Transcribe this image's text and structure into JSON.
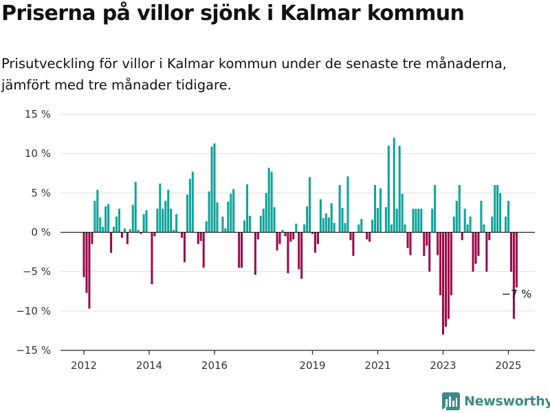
{
  "header": {
    "title": "Priserna på villor sjönk i Kalmar kommun",
    "subtitle": "Prisutveckling för villor i Kalmar kommun under de senaste tre månaderna, jämfört med tre månader tidigare."
  },
  "brand": {
    "name": "Newsworthy",
    "icon": "newsworthy-logo-icon",
    "color": "#3c8a86"
  },
  "colors": {
    "positive": "#0fa39a",
    "negative": "#9b0a4a",
    "grid": "#dddddd",
    "axis": "#222222"
  },
  "chart_data": {
    "type": "bar",
    "title": "Priserna på villor sjönk i Kalmar kommun",
    "subtitle": "Prisutveckling för villor i Kalmar kommun under de senaste tre månaderna, jämfört med tre månader tidigare.",
    "ylim": [
      -15,
      15
    ],
    "yticks": [
      15,
      10,
      5,
      0,
      -5,
      -10,
      -15
    ],
    "ytick_labels": [
      "15 %",
      "10 %",
      "5 %",
      "0 %",
      "−5 %",
      "−10 %",
      "−15 %"
    ],
    "xtick_labels": [
      {
        "label": "2012",
        "x": 2012.0
      },
      {
        "label": "2014",
        "x": 2014.0
      },
      {
        "label": "2016",
        "x": 2016.0
      },
      {
        "label": "2019",
        "x": 2019.0
      },
      {
        "label": "2021",
        "x": 2021.0
      },
      {
        "label": "2023",
        "x": 2023.0
      },
      {
        "label": "2025",
        "x": 2025.0
      }
    ],
    "grid": true,
    "legend": "none",
    "x_start": "2012-01",
    "x_step": "month",
    "values": [
      -5.7,
      -7.7,
      -9.7,
      -1.5,
      4.0,
      5.4,
      1.9,
      0.7,
      3.3,
      3.6,
      -2.6,
      0.7,
      2.0,
      3.0,
      -0.7,
      0.5,
      -1.5,
      0.4,
      3.5,
      6.4,
      0.3,
      -0.2,
      2.3,
      2.8,
      0.0,
      -6.6,
      -0.5,
      3.0,
      6.2,
      3.0,
      4.0,
      5.4,
      3.0,
      0.3,
      2.3,
      0.0,
      -0.7,
      -3.8,
      4.8,
      6.8,
      7.7,
      0.0,
      -1.5,
      -1.1,
      -4.5,
      1.4,
      5.2,
      10.9,
      11.3,
      3.8,
      0.0,
      2.0,
      0.5,
      3.9,
      4.9,
      5.5,
      0.0,
      -4.5,
      -4.5,
      1.5,
      6.1,
      2.1,
      0.0,
      -5.4,
      -0.9,
      2.1,
      3.0,
      5.0,
      8.2,
      7.7,
      3.2,
      -2.3,
      -1.5,
      0.3,
      -0.5,
      -5.2,
      -1.2,
      -0.9,
      1.1,
      -4.7,
      -5.9,
      1.0,
      3.3,
      7.0,
      -0.2,
      -2.6,
      -1.5,
      4.2,
      1.8,
      2.4,
      1.9,
      3.7,
      1.2,
      0.0,
      6.0,
      3.1,
      1.2,
      7.1,
      -1.0,
      -3.0,
      0.0,
      1.0,
      1.7,
      0.0,
      -0.9,
      -1.2,
      1.6,
      6.0,
      3.1,
      5.6,
      0.0,
      3.2,
      11.0,
      1.0,
      12.0,
      3.0,
      11.0,
      4.9,
      1.0,
      -2.0,
      -2.9,
      3.0,
      3.0,
      3.0,
      3.0,
      -3.0,
      -1.7,
      -5.0,
      3.0,
      6.0,
      -2.9,
      -8.0,
      -13.0,
      -12.0,
      -11.0,
      -8.0,
      2.0,
      4.0,
      6.0,
      -1.0,
      3.0,
      1.0,
      2.0,
      -5.0,
      -4.0,
      -3.0,
      4.0,
      1.0,
      -5.0,
      -1.0,
      2.0,
      6.0,
      6.0,
      5.0,
      0.0,
      2.0,
      4.0,
      -5.0,
      -11.0,
      -7.0
    ],
    "annotations": [
      {
        "text": "−7 %",
        "x": "2025-04",
        "y": -7.0
      }
    ]
  }
}
